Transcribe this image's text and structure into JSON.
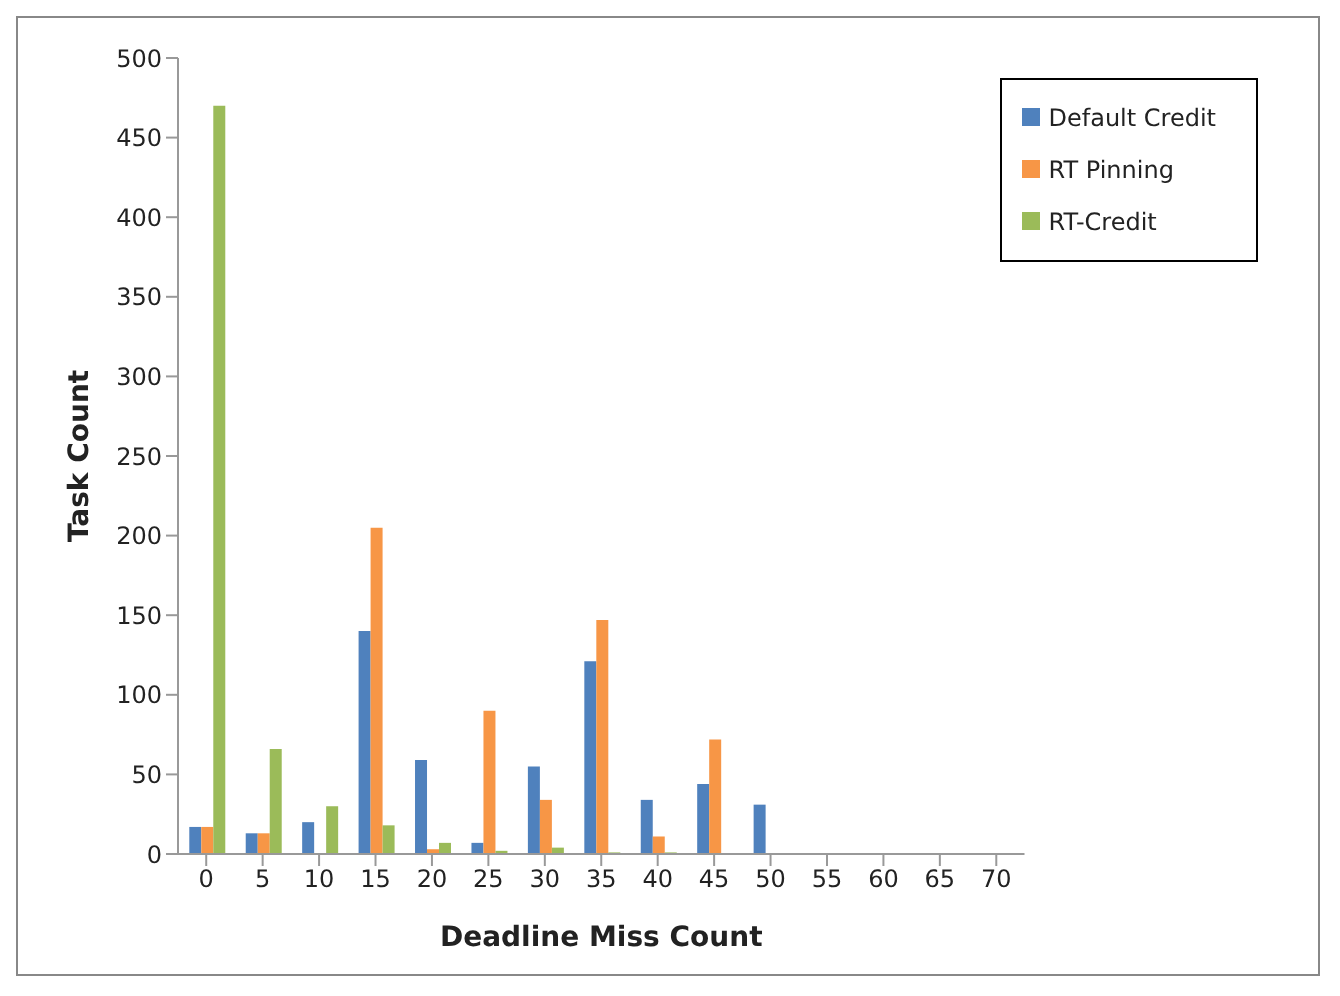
{
  "chart_data": {
    "type": "bar",
    "xlabel": "Deadline Miss Count",
    "ylabel": "Task Count",
    "categories": [
      "0",
      "5",
      "10",
      "15",
      "20",
      "25",
      "30",
      "35",
      "40",
      "45",
      "50",
      "55",
      "60",
      "65",
      "70"
    ],
    "series": [
      {
        "name": "Default Credit",
        "color": "#4f81bd",
        "values": [
          17,
          13,
          20,
          140,
          59,
          7,
          55,
          121,
          34,
          44,
          31,
          0,
          0,
          0,
          0
        ]
      },
      {
        "name": "RT Pinning",
        "color": "#f79646",
        "values": [
          17,
          13,
          0,
          205,
          3,
          90,
          34,
          147,
          11,
          72,
          0,
          0,
          0,
          0,
          0
        ]
      },
      {
        "name": "RT-Credit",
        "color": "#9bbb59",
        "values": [
          470,
          66,
          30,
          18,
          7,
          2,
          4,
          1,
          1,
          0,
          0,
          0,
          0,
          0,
          0
        ]
      }
    ],
    "ylim": [
      0,
      500
    ],
    "yticks": [
      0,
      50,
      100,
      150,
      200,
      250,
      300,
      350,
      400,
      450,
      500
    ],
    "grid": false,
    "legend": "top right"
  }
}
